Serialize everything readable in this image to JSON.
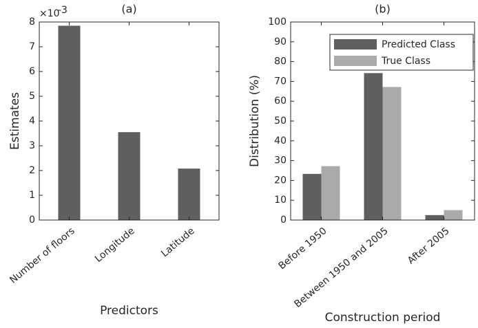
{
  "chart_data": [
    {
      "type": "bar",
      "title": "(a)",
      "y_label": "Estimates",
      "x_label": "Predictors",
      "y_multiplier": {
        "base": "×10",
        "exponent": "-3"
      },
      "categories": [
        "Number of floors",
        "Longitude",
        "Latitude"
      ],
      "series": [
        {
          "color": "#5f5f5f",
          "values": [
            7.85,
            3.55,
            2.08
          ]
        }
      ],
      "ylim": [
        0,
        8
      ],
      "yticks": [
        0,
        1,
        2,
        3,
        4,
        5,
        6,
        7,
        8
      ]
    },
    {
      "type": "bar",
      "title": "(b)",
      "y_label": "Distribution (%)",
      "x_label": "Construction period",
      "categories": [
        "Before 1950",
        "Between 1950 and 2005",
        "After 2005"
      ],
      "series": [
        {
          "name": "Predicted Class",
          "color": "#5f5f5f",
          "values": [
            23.3,
            74.2,
            2.5
          ]
        },
        {
          "name": "True Class",
          "color": "#aaaaaa",
          "values": [
            27.2,
            67.2,
            5.0
          ]
        }
      ],
      "ylim": [
        0,
        100
      ],
      "yticks": [
        0,
        10,
        20,
        30,
        40,
        50,
        60,
        70,
        80,
        90,
        100
      ],
      "legend": "upper right"
    }
  ]
}
